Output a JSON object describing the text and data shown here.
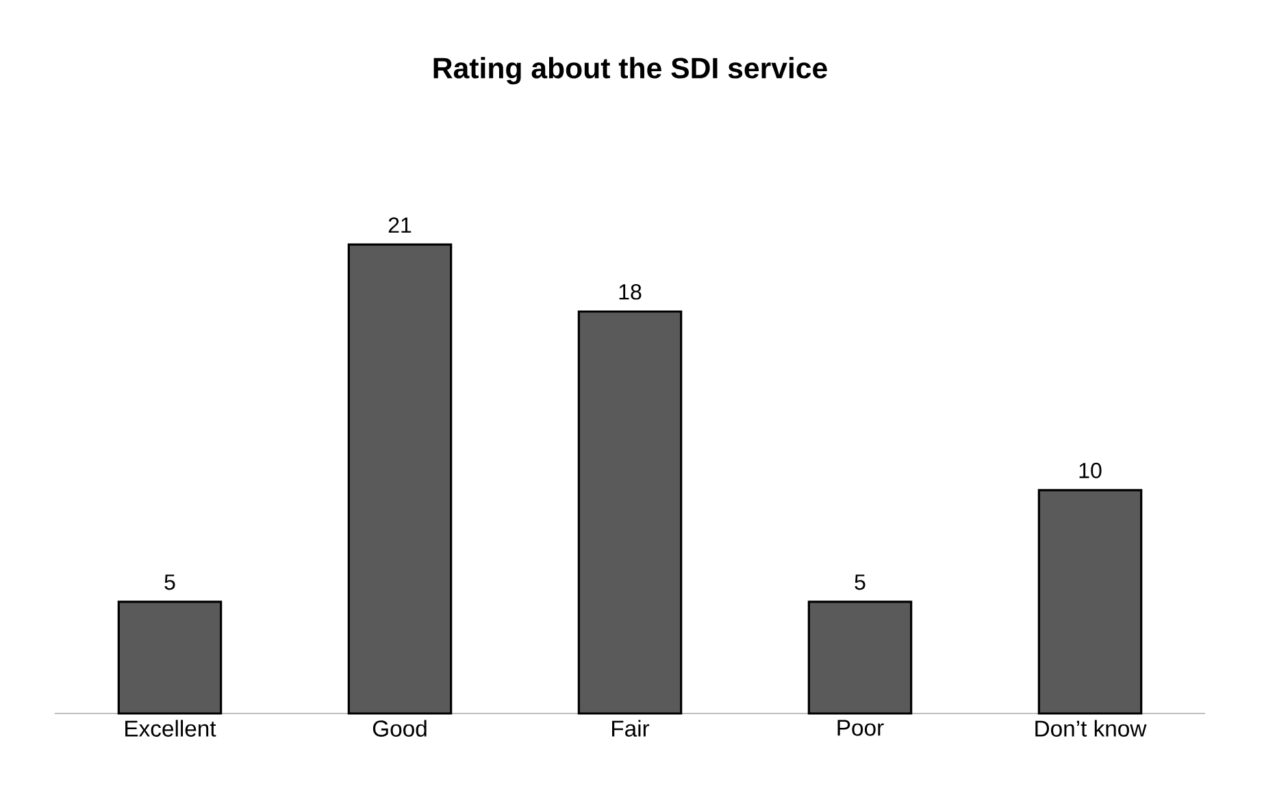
{
  "chart_data": {
    "type": "bar",
    "title": "Rating about the SDI service",
    "categories": [
      "Excellent",
      "Good",
      "Fair",
      "Poor",
      "Don’t know"
    ],
    "values": [
      5,
      21,
      18,
      5,
      10
    ],
    "color": "#5a5a5a",
    "data_labels": true
  }
}
